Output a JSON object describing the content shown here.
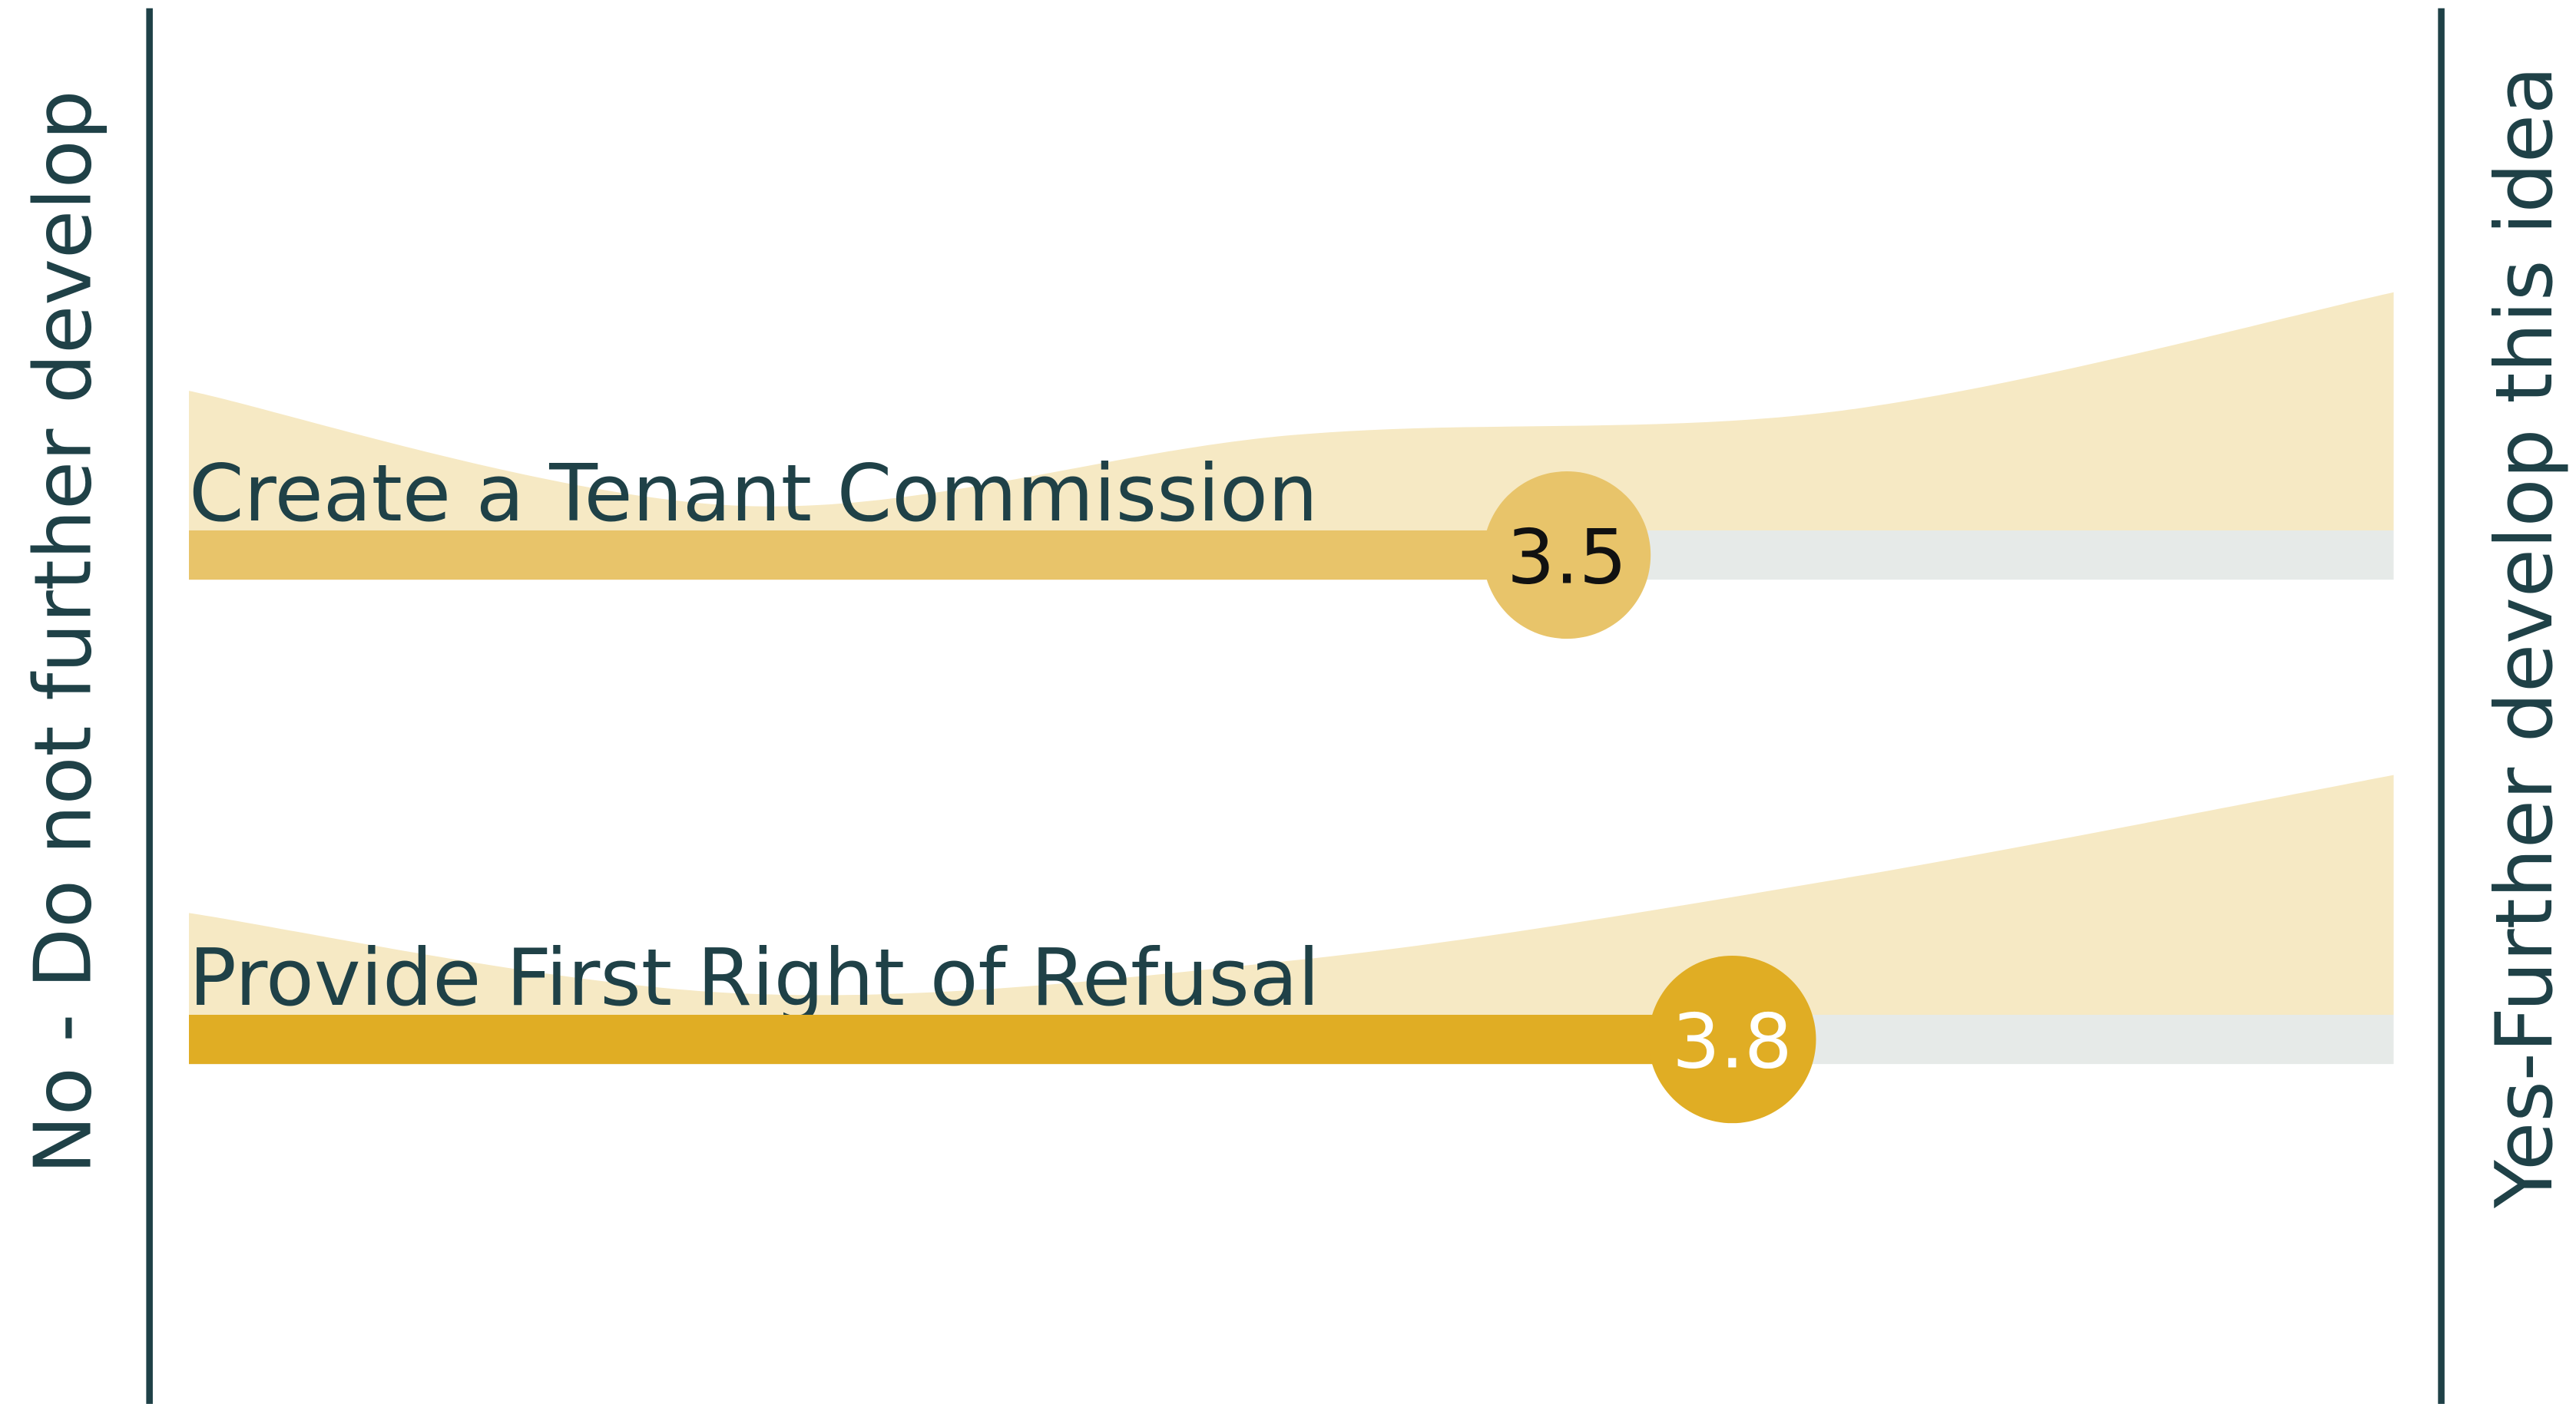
{
  "chart_data": {
    "type": "score",
    "left_label": "No - Do not further develop",
    "right_label": "Yes-Further develop this idea",
    "categories": [
      "Create a Tenant Commission",
      "Provide First Right of Refusal"
    ],
    "values": [
      3.5,
      3.8
    ],
    "colors": [
      "#e8c46a",
      "#e0ad24"
    ],
    "value_label_colors": [
      "#111111",
      "#ffffff"
    ],
    "xlim": [
      1,
      5
    ],
    "distribution_x": [
      1,
      2,
      3,
      4,
      5
    ],
    "distribution": [
      [
        85,
        15,
        58,
        73,
        145
      ],
      [
        62,
        13,
        33,
        83,
        146
      ]
    ],
    "distribution_ylim": [
      0,
      150
    ],
    "distribution_color": "#f6e9c4",
    "track_color": "#e6eae8"
  }
}
